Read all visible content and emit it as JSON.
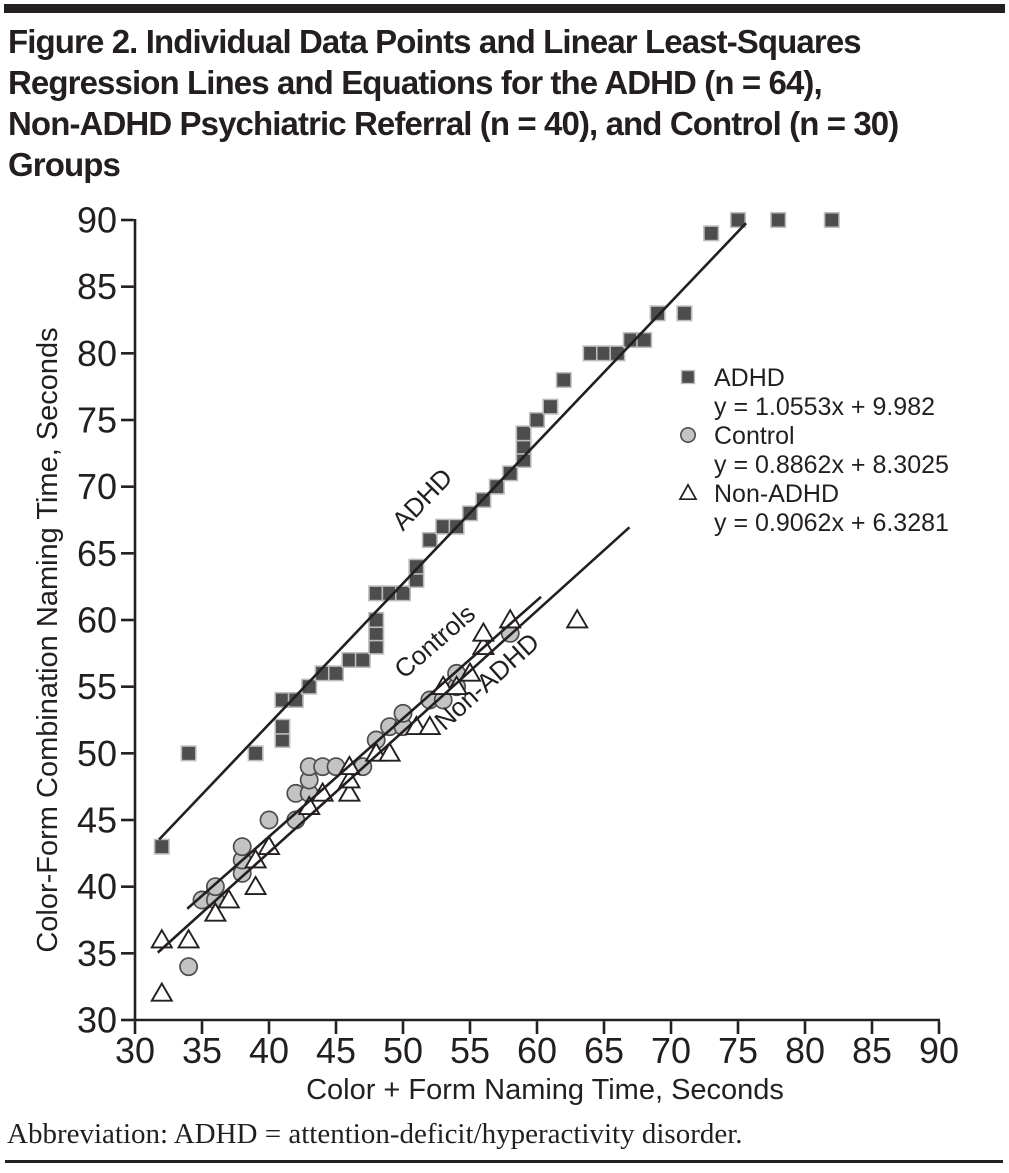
{
  "figure": {
    "title_lines": [
      "Figure 2. Individual Data Points and Linear Least-Squares",
      "Regression Lines and Equations for the ADHD (n = 64),",
      "Non-ADHD Psychiatric Referral (n = 40), and Control (n = 30)",
      "Groups"
    ],
    "footnote": "Abbreviation: ADHD = attention-deficit/hyperactivity disorder.",
    "ink_color": "#231f20"
  },
  "chart_data": {
    "type": "scatter",
    "title": "Figure 2. Individual Data Points and Linear Least-Squares Regression Lines and Equations for the ADHD (n = 64), Non-ADHD Psychiatric Referral (n = 40), and Control (n = 30) Groups",
    "xlabel": "Color + Form Naming Time, Seconds",
    "ylabel": "Color-Form Combination Naming Time, Seconds",
    "xlim": [
      30,
      90
    ],
    "ylim": [
      30,
      90
    ],
    "xticks": [
      30,
      35,
      40,
      45,
      50,
      55,
      60,
      65,
      70,
      75,
      80,
      85,
      90
    ],
    "yticks": [
      30,
      35,
      40,
      45,
      50,
      55,
      60,
      65,
      70,
      75,
      80,
      85,
      90
    ],
    "grid": false,
    "legend_position": "upper-right-inside",
    "series": [
      {
        "name": "ADHD",
        "n": 64,
        "marker": "square",
        "fill": "#4d4d4d",
        "stroke": "#bdbdbd",
        "equation": "y = 1.0553x + 9.982",
        "regression": {
          "slope": 1.0553,
          "intercept": 9.982,
          "x_start": 31.8,
          "x_end": 75.6
        },
        "inline_label": {
          "text": "ADHD",
          "x": 51.9,
          "y": 68.6,
          "angle_deg": -46
        },
        "points": [
          [
            32,
            43
          ],
          [
            34,
            50
          ],
          [
            39,
            50
          ],
          [
            41,
            51
          ],
          [
            41,
            52
          ],
          [
            41,
            54
          ],
          [
            42,
            54
          ],
          [
            43,
            55
          ],
          [
            44,
            56
          ],
          [
            45,
            56
          ],
          [
            46,
            57
          ],
          [
            47,
            57
          ],
          [
            48,
            58
          ],
          [
            48,
            59
          ],
          [
            48,
            60
          ],
          [
            48,
            62
          ],
          [
            49,
            62
          ],
          [
            50,
            62
          ],
          [
            51,
            63
          ],
          [
            51,
            64
          ],
          [
            52,
            66
          ],
          [
            53,
            67
          ],
          [
            54,
            67
          ],
          [
            55,
            68
          ],
          [
            56,
            69
          ],
          [
            57,
            70
          ],
          [
            58,
            71
          ],
          [
            59,
            72
          ],
          [
            59,
            73
          ],
          [
            59,
            74
          ],
          [
            60,
            75
          ],
          [
            61,
            76
          ],
          [
            62,
            78
          ],
          [
            64,
            80
          ],
          [
            65,
            80
          ],
          [
            66,
            80
          ],
          [
            67,
            81
          ],
          [
            68,
            81
          ],
          [
            69,
            83
          ],
          [
            71,
            83
          ],
          [
            73,
            89
          ],
          [
            75,
            90
          ],
          [
            78,
            90
          ],
          [
            82,
            90
          ]
        ]
      },
      {
        "name": "Control",
        "n": 30,
        "marker": "circle",
        "fill": "#c3c3c3",
        "stroke": "#4d4d4d",
        "equation": "y = 0.8862x + 8.3025",
        "regression": {
          "slope": 0.8862,
          "intercept": 8.3025,
          "x_start": 33.9,
          "x_end": 60.3
        },
        "inline_label": {
          "text": "Controls",
          "x": 52.8,
          "y": 57.9,
          "angle_deg": -41
        },
        "points": [
          [
            34,
            34
          ],
          [
            35,
            39
          ],
          [
            36,
            39
          ],
          [
            36,
            40
          ],
          [
            38,
            41
          ],
          [
            38,
            42
          ],
          [
            38,
            43
          ],
          [
            40,
            45
          ],
          [
            42,
            45
          ],
          [
            42,
            47
          ],
          [
            43,
            47
          ],
          [
            43,
            48
          ],
          [
            43,
            49
          ],
          [
            44,
            49
          ],
          [
            45,
            49
          ],
          [
            47,
            49
          ],
          [
            48,
            51
          ],
          [
            49,
            52
          ],
          [
            50,
            52
          ],
          [
            50,
            53
          ],
          [
            52,
            54
          ],
          [
            53,
            54
          ],
          [
            54,
            55
          ],
          [
            54,
            56
          ],
          [
            58,
            59
          ]
        ]
      },
      {
        "name": "Non-ADHD",
        "n": 40,
        "marker": "triangle",
        "fill": "#ffffff",
        "stroke": "#231f20",
        "equation": "y = 0.9062x + 6.3281",
        "regression": {
          "slope": 0.9062,
          "intercept": 6.3281,
          "x_start": 31.7,
          "x_end": 66.9
        },
        "inline_label": {
          "text": "Non-ADHD",
          "x": 56.7,
          "y": 54.9,
          "angle_deg": -42
        },
        "points": [
          [
            32,
            32
          ],
          [
            32,
            36
          ],
          [
            34,
            36
          ],
          [
            36,
            38
          ],
          [
            37,
            39
          ],
          [
            39,
            40
          ],
          [
            39,
            42
          ],
          [
            40,
            43
          ],
          [
            43,
            46
          ],
          [
            44,
            47
          ],
          [
            46,
            47
          ],
          [
            46,
            48
          ],
          [
            46,
            49
          ],
          [
            48,
            50
          ],
          [
            49,
            50
          ],
          [
            51,
            52
          ],
          [
            52,
            52
          ],
          [
            53,
            55
          ],
          [
            54,
            55
          ],
          [
            55,
            56
          ],
          [
            56,
            58
          ],
          [
            56,
            59
          ],
          [
            58,
            60
          ],
          [
            63,
            60
          ]
        ]
      }
    ]
  }
}
